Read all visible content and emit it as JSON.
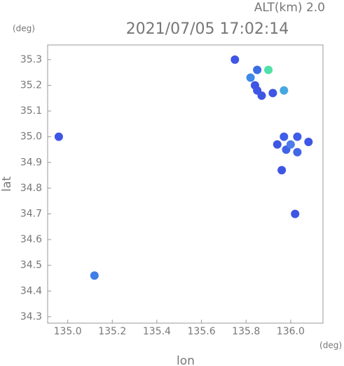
{
  "chart_data": {
    "type": "scatter",
    "annotation": "ALT(km)  2.0",
    "title": "2021/07/05 17:02:14",
    "y_unit": "(deg)",
    "x_unit": "(deg)",
    "x_label": "lon",
    "y_label": "lat",
    "xlim": [
      134.91,
      136.145
    ],
    "ylim": [
      34.275,
      35.357
    ],
    "xticks": [
      {
        "value": 135.0,
        "label": "135.0"
      },
      135.2,
      135.4,
      135.6,
      135.8,
      {
        "value": 136.0,
        "label": "136.0"
      }
    ],
    "yticks": [
      34.3,
      34.4,
      34.5,
      34.6,
      34.7,
      34.8,
      34.9,
      {
        "value": 35.0,
        "label": "35.0"
      },
      35.1,
      35.2,
      35.3
    ],
    "x": [
      135.97,
      136.03,
      136.08,
      135.98,
      136.03,
      136.0,
      135.94,
      135.75,
      135.85,
      135.9,
      135.82,
      135.84,
      135.85,
      135.92,
      135.97,
      135.87,
      134.96,
      135.12,
      136.02,
      135.96
    ],
    "y": [
      35.0,
      35.0,
      34.98,
      34.95,
      34.94,
      34.97,
      34.97,
      35.3,
      35.26,
      35.26,
      35.23,
      35.2,
      35.18,
      35.17,
      35.18,
      35.16,
      35.0,
      34.46,
      34.7,
      34.87
    ],
    "colors": [
      "#3f5de8",
      "#3f5de8",
      "#3e56e4",
      "#3f62e6",
      "#4266e6",
      "#4f7bea",
      "#3e56e4",
      "#3e56e4",
      "#3a6de6",
      "#4fe0a8",
      "#3e8ae6",
      "#3e56e4",
      "#3e56e4",
      "#3e56e4",
      "#45a8e0",
      "#3e56e4",
      "#3e56e4",
      "#3e7ee6",
      "#3e56e4",
      "#3e56e4"
    ]
  }
}
